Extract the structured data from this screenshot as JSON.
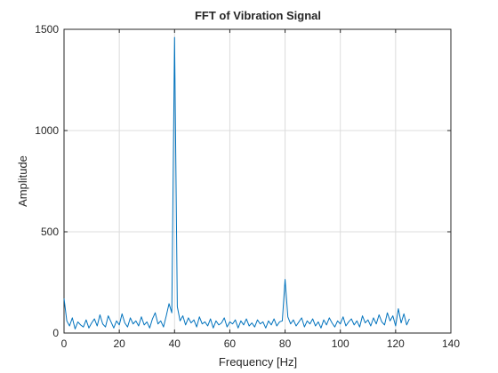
{
  "chart_data": {
    "type": "line",
    "title": "FFT of Vibration Signal",
    "x_label": "Frequency [Hz]",
    "y_label": "Amplitude",
    "x": [
      0,
      1,
      2,
      3,
      4,
      5,
      6,
      7,
      8,
      9,
      10,
      11,
      12,
      13,
      14,
      15,
      16,
      17,
      18,
      19,
      20,
      21,
      22,
      23,
      24,
      25,
      26,
      27,
      28,
      29,
      30,
      31,
      32,
      33,
      34,
      35,
      36,
      37,
      38,
      39,
      40,
      41,
      42,
      43,
      44,
      45,
      46,
      47,
      48,
      49,
      50,
      51,
      52,
      53,
      54,
      55,
      56,
      57,
      58,
      59,
      60,
      61,
      62,
      63,
      64,
      65,
      66,
      67,
      68,
      69,
      70,
      71,
      72,
      73,
      74,
      75,
      76,
      77,
      78,
      79,
      80,
      81,
      82,
      83,
      84,
      85,
      86,
      87,
      88,
      89,
      90,
      91,
      92,
      93,
      94,
      95,
      96,
      97,
      98,
      99,
      100,
      101,
      102,
      103,
      104,
      105,
      106,
      107,
      108,
      109,
      110,
      111,
      112,
      113,
      114,
      115,
      116,
      117,
      118,
      119,
      120,
      121,
      122,
      123,
      124,
      125
    ],
    "series": [
      {
        "color": "#0072bd",
        "values": [
          170,
          60,
          35,
          75,
          20,
          55,
          40,
          30,
          65,
          25,
          50,
          70,
          35,
          90,
          45,
          30,
          85,
          55,
          25,
          60,
          40,
          95,
          50,
          30,
          75,
          45,
          60,
          35,
          80,
          40,
          55,
          25,
          70,
          100,
          45,
          60,
          30,
          85,
          145,
          100,
          1460,
          130,
          60,
          85,
          40,
          75,
          50,
          65,
          30,
          80,
          45,
          55,
          35,
          70,
          25,
          60,
          40,
          50,
          75,
          30,
          55,
          45,
          65,
          25,
          60,
          40,
          70,
          35,
          50,
          30,
          65,
          45,
          55,
          25,
          60,
          40,
          70,
          35,
          55,
          60,
          265,
          80,
          45,
          65,
          35,
          55,
          75,
          30,
          60,
          45,
          70,
          35,
          55,
          25,
          65,
          40,
          75,
          50,
          30,
          60,
          45,
          80,
          35,
          55,
          70,
          40,
          60,
          30,
          85,
          50,
          65,
          35,
          75,
          45,
          90,
          55,
          40,
          100,
          60,
          85,
          35,
          120,
          50,
          95,
          40,
          70
        ]
      }
    ],
    "xlim": [
      0,
      140
    ],
    "xticks": [
      0,
      20,
      40,
      60,
      80,
      100,
      120,
      140
    ],
    "ylim": [
      0,
      1500
    ],
    "yticks": [
      0,
      500,
      1000,
      1500
    ],
    "grid": true
  }
}
